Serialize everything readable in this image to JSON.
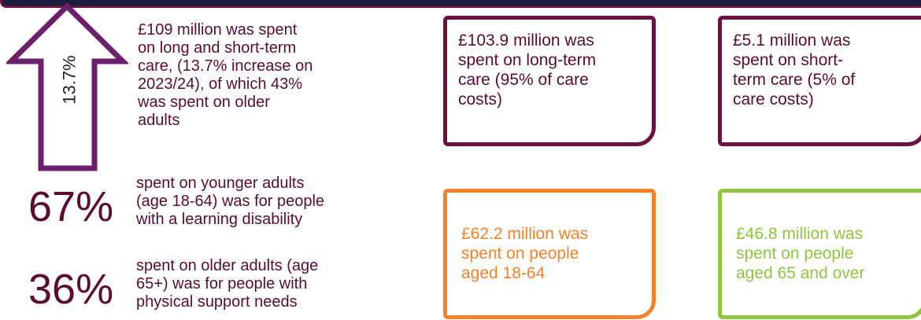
{
  "arrow_label": "13.7%",
  "summary": {
    "lines": [
      "£109 million was spent",
      "on long and short-term",
      "care, (13.7% increase on",
      "2023/24), of which 43%",
      "was spent on older",
      "adults"
    ]
  },
  "stats": [
    {
      "figure": "67%",
      "lines": [
        "spent on younger adults",
        "(age 18-64) was for people",
        "with a learning disability"
      ]
    },
    {
      "figure": "36%",
      "lines": [
        "spent on older adults (age",
        "65+) was for people with",
        "physical support needs"
      ]
    }
  ],
  "boxes": [
    {
      "lines": [
        "£103.9 million was",
        "spent on long-term",
        "care (95% of care",
        "costs)"
      ]
    },
    {
      "lines": [
        "£5.1 million was",
        "spent on short-",
        "term care (5% of",
        "care costs)"
      ]
    },
    {
      "lines": [
        "£62.2 million was",
        "spent on people",
        "aged 18-64"
      ]
    },
    {
      "lines": [
        "£46.8 million was",
        "spent on people",
        "aged 65 and over"
      ]
    }
  ]
}
